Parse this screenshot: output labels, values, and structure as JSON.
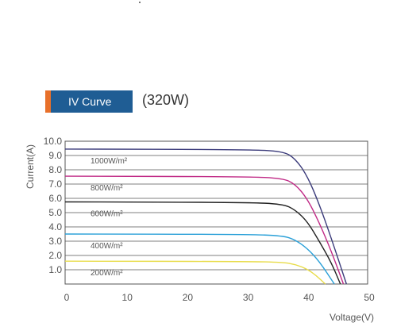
{
  "header": {
    "tag_label": "IV Curve",
    "subtitle": "(320W)"
  },
  "colors": {
    "tag_bg": "#1f5d94",
    "tag_accent": "#e8702a"
  },
  "chart_data": {
    "type": "line",
    "xlabel": "Voltage(V)",
    "ylabel": "Current(A)",
    "xlim": [
      0,
      50
    ],
    "ylim": [
      0,
      10
    ],
    "xticks": [
      "0",
      "10",
      "20",
      "30",
      "40",
      "50"
    ],
    "yticks": [
      "1.0",
      "2.0",
      "3.0",
      "4.0",
      "5.0",
      "6.0",
      "7.0",
      "8.0",
      "9.0",
      "10.0"
    ],
    "grid": "horizontal",
    "series": [
      {
        "name": "1000W/m²",
        "color": "#3a3a7a",
        "isc": 9.45,
        "knee_v": 36,
        "voc": 46.5,
        "points": [
          [
            0,
            9.45
          ],
          [
            30,
            9.42
          ],
          [
            36,
            9.3
          ],
          [
            38,
            8.8
          ],
          [
            40,
            7.6
          ],
          [
            42,
            5.6
          ],
          [
            44,
            3.2
          ],
          [
            46.5,
            0
          ]
        ]
      },
      {
        "name": "800W/m²",
        "color": "#c02a86",
        "isc": 7.55,
        "knee_v": 36,
        "voc": 46.0,
        "points": [
          [
            0,
            7.55
          ],
          [
            30,
            7.52
          ],
          [
            36,
            7.4
          ],
          [
            38,
            7.0
          ],
          [
            40,
            6.0
          ],
          [
            42,
            4.3
          ],
          [
            44,
            2.3
          ],
          [
            46.0,
            0
          ]
        ]
      },
      {
        "name": "600W/m²",
        "color": "#222222",
        "isc": 5.75,
        "knee_v": 36,
        "voc": 45.5,
        "points": [
          [
            0,
            5.75
          ],
          [
            30,
            5.72
          ],
          [
            36,
            5.6
          ],
          [
            38,
            5.2
          ],
          [
            40,
            4.4
          ],
          [
            42,
            3.0
          ],
          [
            44,
            1.5
          ],
          [
            45.5,
            0
          ]
        ]
      },
      {
        "name": "400W/m²",
        "color": "#2aa0d8",
        "isc": 3.5,
        "knee_v": 36,
        "voc": 44.5,
        "points": [
          [
            0,
            3.5
          ],
          [
            30,
            3.48
          ],
          [
            36,
            3.38
          ],
          [
            38,
            3.1
          ],
          [
            40,
            2.5
          ],
          [
            42,
            1.6
          ],
          [
            44.5,
            0
          ]
        ]
      },
      {
        "name": "200W/m²",
        "color": "#e8dc4a",
        "isc": 1.6,
        "knee_v": 38,
        "voc": 43.0,
        "points": [
          [
            0,
            1.6
          ],
          [
            30,
            1.58
          ],
          [
            36,
            1.52
          ],
          [
            38,
            1.38
          ],
          [
            40,
            1.05
          ],
          [
            41.5,
            0.6
          ],
          [
            43.0,
            0
          ]
        ]
      }
    ]
  }
}
